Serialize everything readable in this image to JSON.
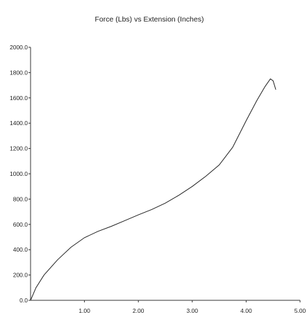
{
  "chart_data": {
    "type": "line",
    "title": "Force (Lbs) vs Extension (Inches)",
    "xlabel": "",
    "ylabel": "",
    "xlim": [
      0,
      5
    ],
    "ylim": [
      0,
      2000
    ],
    "x_ticks": [
      "1.00",
      "2.00",
      "3.00",
      "4.00",
      "5.00"
    ],
    "y_ticks": [
      "0.0",
      "200.0",
      "400.0",
      "600.0",
      "800.0",
      "1000.0",
      "1200.0",
      "1400.0",
      "1600.0",
      "1800.0",
      "2000.0"
    ],
    "grid": false,
    "series": [
      {
        "x": [
          0,
          0.1,
          0.25,
          0.5,
          0.75,
          1.0,
          1.25,
          1.5,
          1.75,
          2.0,
          2.25,
          2.5,
          2.75,
          3.0,
          3.25,
          3.5,
          3.75,
          4.0,
          4.2,
          4.35,
          4.45,
          4.5,
          4.55
        ],
        "y": [
          0,
          100,
          200,
          320,
          420,
          495,
          545,
          585,
          630,
          675,
          718,
          768,
          830,
          900,
          980,
          1070,
          1210,
          1420,
          1580,
          1690,
          1750,
          1735,
          1665
        ]
      }
    ]
  }
}
